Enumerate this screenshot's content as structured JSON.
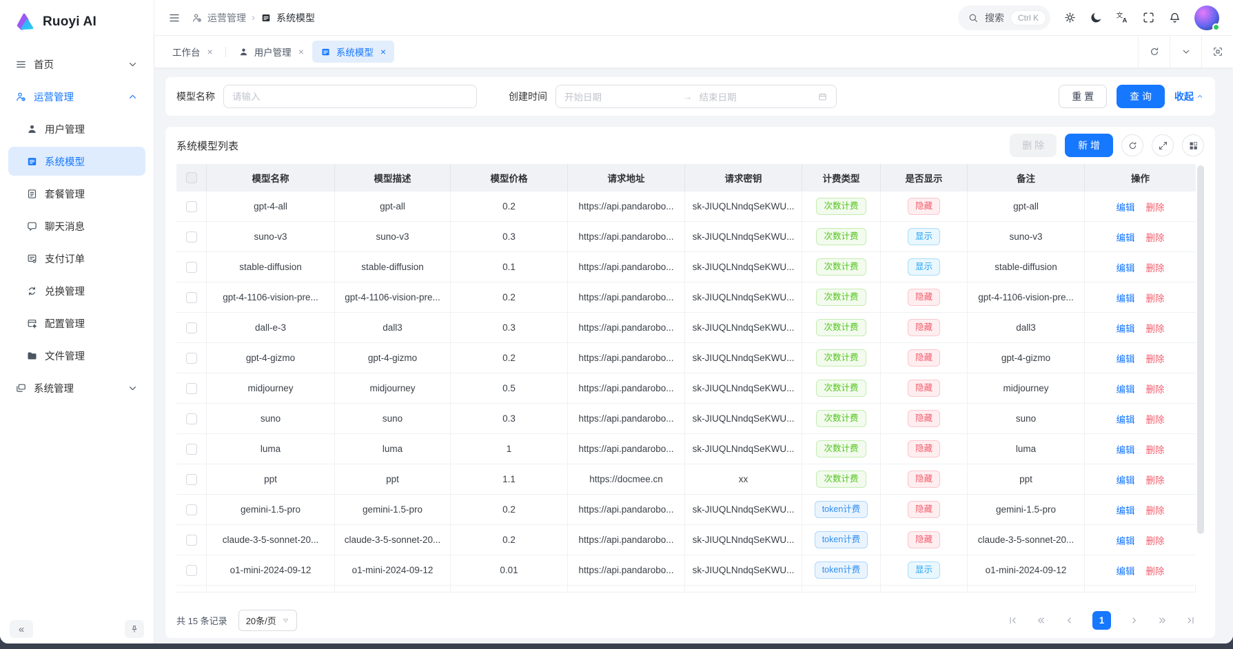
{
  "app": {
    "window_title": "Ruoyi AI"
  },
  "colors": {
    "primary": "#1677ff",
    "active_bg": "#dfecfd",
    "danger": "#f35f6e",
    "success": "#52c41a"
  },
  "sidebar": {
    "logo_text": "Ruoyi AI",
    "items": [
      {
        "label": "首页",
        "icon": "home-icon",
        "chevron": "down",
        "type": "top"
      },
      {
        "label": "运营管理",
        "icon": "ops-icon",
        "chevron": "up",
        "type": "top",
        "parent_active": true
      },
      {
        "label": "用户管理",
        "icon": "user-icon",
        "type": "sub"
      },
      {
        "label": "系统模型",
        "icon": "model-icon",
        "type": "sub",
        "active": true
      },
      {
        "label": "套餐管理",
        "icon": "package-icon",
        "type": "sub"
      },
      {
        "label": "聊天消息",
        "icon": "chat-icon",
        "type": "sub"
      },
      {
        "label": "支付订单",
        "icon": "order-icon",
        "type": "sub"
      },
      {
        "label": "兑换管理",
        "icon": "exchange-icon",
        "type": "sub"
      },
      {
        "label": "配置管理",
        "icon": "config-icon",
        "type": "sub"
      },
      {
        "label": "文件管理",
        "icon": "file-icon",
        "type": "sub"
      },
      {
        "label": "系统管理",
        "icon": "system-icon",
        "chevron": "down",
        "type": "top"
      }
    ],
    "collapse_glyph": "«"
  },
  "topbar": {
    "breadcrumb": [
      {
        "label": "运营管理",
        "icon": "ops-icon"
      },
      {
        "label": "系统模型",
        "icon": "model-icon"
      }
    ],
    "breadcrumb_sep": "›",
    "search": {
      "placeholder": "搜索",
      "shortcut": "Ctrl K"
    },
    "action_icons": [
      "gear-icon",
      "moon-icon",
      "translate-icon",
      "fullscreen-icon",
      "bell-icon"
    ]
  },
  "tabbar": {
    "tabs": [
      {
        "label": "工作台"
      },
      {
        "label": "用户管理",
        "icon": "user-icon"
      },
      {
        "label": "系统模型",
        "icon": "model-icon",
        "active": true
      }
    ],
    "close_glyph": "×",
    "control_icons": [
      "refresh-icon",
      "chevron-down-icon",
      "focus-icon"
    ]
  },
  "filter": {
    "name_label": "模型名称",
    "name_placeholder": "请输入",
    "date_label": "创建时间",
    "date_start_placeholder": "开始日期",
    "date_arrow": "→",
    "date_end_placeholder": "结束日期",
    "reset_label": "重 置",
    "search_label": "查 询",
    "collapse_label": "收起"
  },
  "table": {
    "title": "系统模型列表",
    "delete_label": "删 除",
    "add_label": "新 增",
    "tool_icons": [
      "refresh-icon",
      "expand-icon",
      "columns-icon"
    ],
    "columns": [
      "模型名称",
      "模型描述",
      "模型价格",
      "请求地址",
      "请求密钥",
      "计费类型",
      "是否显示",
      "备注",
      "操作"
    ],
    "edit_label": "编辑",
    "del_label": "删除",
    "rows": [
      {
        "name": "gpt-4-all",
        "desc": "gpt-all",
        "price": "0.2",
        "url": "https://api.pandarobo...",
        "key": "sk-JIUQLNndqSeKWU...",
        "billing": "次数计费",
        "billing_color": "green",
        "visible": "隐藏",
        "visible_color": "red",
        "remark": "gpt-all"
      },
      {
        "name": "suno-v3",
        "desc": "suno-v3",
        "price": "0.3",
        "url": "https://api.pandarobo...",
        "key": "sk-JIUQLNndqSeKWU...",
        "billing": "次数计费",
        "billing_color": "green",
        "visible": "显示",
        "visible_color": "lightblue",
        "remark": "suno-v3"
      },
      {
        "name": "stable-diffusion",
        "desc": "stable-diffusion",
        "price": "0.1",
        "url": "https://api.pandarobo...",
        "key": "sk-JIUQLNndqSeKWU...",
        "billing": "次数计费",
        "billing_color": "green",
        "visible": "显示",
        "visible_color": "lightblue",
        "remark": "stable-diffusion"
      },
      {
        "name": "gpt-4-1106-vision-pre...",
        "desc": "gpt-4-1106-vision-pre...",
        "price": "0.2",
        "url": "https://api.pandarobo...",
        "key": "sk-JIUQLNndqSeKWU...",
        "billing": "次数计费",
        "billing_color": "green",
        "visible": "隐藏",
        "visible_color": "red",
        "remark": "gpt-4-1106-vision-pre..."
      },
      {
        "name": "dall-e-3",
        "desc": "dall3",
        "price": "0.3",
        "url": "https://api.pandarobo...",
        "key": "sk-JIUQLNndqSeKWU...",
        "billing": "次数计费",
        "billing_color": "green",
        "visible": "隐藏",
        "visible_color": "red",
        "remark": "dall3"
      },
      {
        "name": "gpt-4-gizmo",
        "desc": "gpt-4-gizmo",
        "price": "0.2",
        "url": "https://api.pandarobo...",
        "key": "sk-JIUQLNndqSeKWU...",
        "billing": "次数计费",
        "billing_color": "green",
        "visible": "隐藏",
        "visible_color": "red",
        "remark": "gpt-4-gizmo"
      },
      {
        "name": "midjourney",
        "desc": "midjourney",
        "price": "0.5",
        "url": "https://api.pandarobo...",
        "key": "sk-JIUQLNndqSeKWU...",
        "billing": "次数计费",
        "billing_color": "green",
        "visible": "隐藏",
        "visible_color": "red",
        "remark": "midjourney"
      },
      {
        "name": "suno",
        "desc": "suno",
        "price": "0.3",
        "url": "https://api.pandarobo...",
        "key": "sk-JIUQLNndqSeKWU...",
        "billing": "次数计费",
        "billing_color": "green",
        "visible": "隐藏",
        "visible_color": "red",
        "remark": "suno"
      },
      {
        "name": "luma",
        "desc": "luma",
        "price": "1",
        "url": "https://api.pandarobo...",
        "key": "sk-JIUQLNndqSeKWU...",
        "billing": "次数计费",
        "billing_color": "green",
        "visible": "隐藏",
        "visible_color": "red",
        "remark": "luma"
      },
      {
        "name": "ppt",
        "desc": "ppt",
        "price": "1.1",
        "url": "https://docmee.cn",
        "key": "xx",
        "billing": "次数计费",
        "billing_color": "green",
        "visible": "隐藏",
        "visible_color": "red",
        "remark": "ppt"
      },
      {
        "name": "gemini-1.5-pro",
        "desc": "gemini-1.5-pro",
        "price": "0.2",
        "url": "https://api.pandarobo...",
        "key": "sk-JIUQLNndqSeKWU...",
        "billing": "token计费",
        "billing_color": "blue",
        "visible": "隐藏",
        "visible_color": "red",
        "remark": "gemini-1.5-pro"
      },
      {
        "name": "claude-3-5-sonnet-20...",
        "desc": "claude-3-5-sonnet-20...",
        "price": "0.2",
        "url": "https://api.pandarobo...",
        "key": "sk-JIUQLNndqSeKWU...",
        "billing": "token计费",
        "billing_color": "blue",
        "visible": "隐藏",
        "visible_color": "red",
        "remark": "claude-3-5-sonnet-20..."
      },
      {
        "name": "o1-mini-2024-09-12",
        "desc": "o1-mini-2024-09-12",
        "price": "0.01",
        "url": "https://api.pandarobo...",
        "key": "sk-JIUQLNndqSeKWU...",
        "billing": "token计费",
        "billing_color": "blue",
        "visible": "显示",
        "visible_color": "lightblue",
        "remark": "o1-mini-2024-09-12"
      }
    ]
  },
  "pagination": {
    "total_text": "共 15 条记录",
    "page_size": "20条/页",
    "current_page": "1",
    "nav_icons_before": [
      "page-first-icon",
      "page-prevg-icon",
      "page-prev-icon"
    ],
    "nav_icons_after": [
      "page-next-icon",
      "page-nextg-icon",
      "page-last-icon"
    ]
  }
}
